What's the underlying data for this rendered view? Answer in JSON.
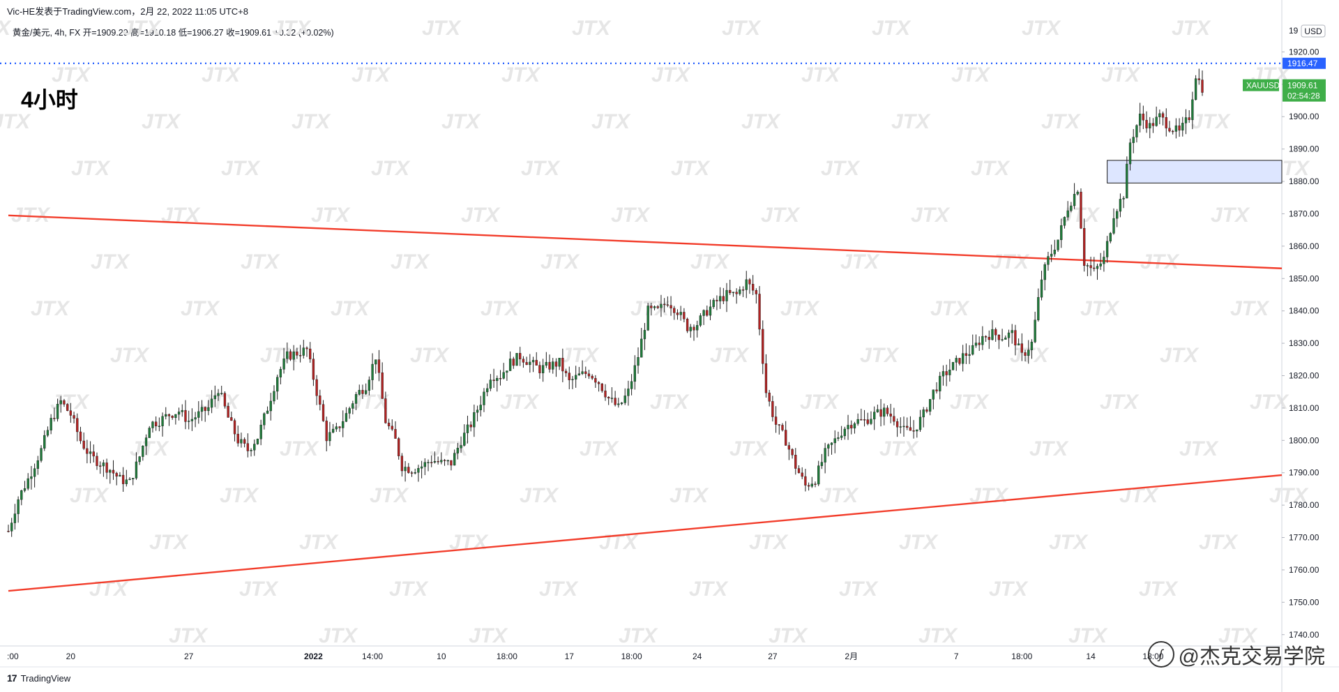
{
  "header": {
    "publisher": "Vic-HE发表于TradingView.com，2月 22, 2022 11:05 UTC+8"
  },
  "symbol_line": "黄金/美元, 4h, FX  开=1909.29  高=1910.18  低=1906.27  收=1909.61  +0.32 (+0.02%)",
  "timeframe_label": "4小时",
  "footer": {
    "brand": "TradingView",
    "brand_icon": "tv-logo-icon"
  },
  "watermark": {
    "text": "@杰克交易学院",
    "icon": "weibo-icon"
  },
  "background_watermark": "JTX",
  "colors": {
    "up": "#26a69a",
    "up_candle": "#1f7a3a",
    "down": "#b22222",
    "trendline": "#f23c2a",
    "dotted": "#2962ff",
    "price_tag": "#2962ff",
    "last_tag": "#3fae49",
    "zone_fill": "#dde6ff"
  },
  "chart_data": {
    "type": "candlestick",
    "title": "",
    "currency": "USD",
    "y_ticks": [
      1740,
      1750,
      1760,
      1770,
      1780,
      1790,
      1800,
      1810,
      1820,
      1830,
      1840,
      1850,
      1860,
      1870,
      1880,
      1890,
      1900,
      1910,
      1920
    ],
    "y_tick_labels": [
      "1740.00",
      "1750.00",
      "1760.00",
      "1770.00",
      "1780.00",
      "1790.00",
      "1800.00",
      "1810.00",
      "1820.00",
      "1830.00",
      "1840.00",
      "1850.00",
      "1860.00",
      "1870.00",
      "1880.00",
      "1890.00",
      "1900.00",
      "1910.00",
      "1920.00"
    ],
    "y_top_label": "19",
    "ylim": [
      1736.5,
      1930
    ],
    "x_ticks": [
      {
        "label": ":00",
        "bar": 0
      },
      {
        "label": "20",
        "bar": 19
      },
      {
        "label": "27",
        "bar": 55
      },
      {
        "label": "2022",
        "bar": 93,
        "bold": true
      },
      {
        "label": "14:00",
        "bar": 111
      },
      {
        "label": "10",
        "bar": 132
      },
      {
        "label": "18:00",
        "bar": 152
      },
      {
        "label": "17",
        "bar": 171
      },
      {
        "label": "18:00",
        "bar": 190
      },
      {
        "label": "24",
        "bar": 210
      },
      {
        "label": "27",
        "bar": 233
      },
      {
        "label": "2月",
        "bar": 257
      },
      {
        "label": "7",
        "bar": 289
      },
      {
        "label": "18:00",
        "bar": 309
      },
      {
        "label": "14",
        "bar": 330
      },
      {
        "label": "18:00",
        "bar": 349
      }
    ],
    "price_lines": [
      {
        "price": 1916.47,
        "label": "1916.47",
        "style": "dotted"
      }
    ],
    "last_price": {
      "symbol": "XAUUSD",
      "price": "1909.61",
      "countdown": "02:54:28",
      "value": 1909.61
    },
    "zone": {
      "top": 1886.5,
      "bottom": 1879.5,
      "bar_start": 335
    },
    "trendlines": [
      {
        "from": [
          0,
          1869.5
        ],
        "to": [
          396,
          1852.8
        ]
      },
      {
        "from": [
          0,
          1753.5
        ],
        "to": [
          396,
          1790.0
        ]
      }
    ],
    "anchors": [
      [
        0,
        1772
      ],
      [
        3,
        1782
      ],
      [
        6,
        1788
      ],
      [
        10,
        1797
      ],
      [
        13,
        1806
      ],
      [
        16,
        1812
      ],
      [
        19,
        1808
      ],
      [
        22,
        1800
      ],
      [
        25,
        1795
      ],
      [
        28,
        1793
      ],
      [
        31,
        1791
      ],
      [
        34,
        1788
      ],
      [
        37,
        1787
      ],
      [
        40,
        1795
      ],
      [
        43,
        1805
      ],
      [
        46,
        1806
      ],
      [
        49,
        1808
      ],
      [
        52,
        1809
      ],
      [
        55,
        1806
      ],
      [
        58,
        1808
      ],
      [
        61,
        1810
      ],
      [
        64,
        1816
      ],
      [
        67,
        1807
      ],
      [
        70,
        1800
      ],
      [
        73,
        1797
      ],
      [
        76,
        1801
      ],
      [
        79,
        1810
      ],
      [
        82,
        1820
      ],
      [
        85,
        1826
      ],
      [
        88,
        1827
      ],
      [
        91,
        1828
      ],
      [
        94,
        1815
      ],
      [
        97,
        1801
      ],
      [
        100,
        1803
      ],
      [
        103,
        1808
      ],
      [
        106,
        1814
      ],
      [
        109,
        1817
      ],
      [
        112,
        1826
      ],
      [
        115,
        1806
      ],
      [
        118,
        1800
      ],
      [
        120,
        1792
      ],
      [
        123,
        1791
      ],
      [
        126,
        1792
      ],
      [
        129,
        1794
      ],
      [
        132,
        1793
      ],
      [
        135,
        1793
      ],
      [
        138,
        1800
      ],
      [
        141,
        1805
      ],
      [
        144,
        1812
      ],
      [
        147,
        1820
      ],
      [
        150,
        1820
      ],
      [
        153,
        1824
      ],
      [
        156,
        1826
      ],
      [
        159,
        1824
      ],
      [
        162,
        1822
      ],
      [
        165,
        1823
      ],
      [
        168,
        1824
      ],
      [
        171,
        1818
      ],
      [
        174,
        1820
      ],
      [
        177,
        1821
      ],
      [
        180,
        1818
      ],
      [
        183,
        1813
      ],
      [
        186,
        1810
      ],
      [
        189,
        1815
      ],
      [
        192,
        1826
      ],
      [
        195,
        1840
      ],
      [
        198,
        1840
      ],
      [
        201,
        1843
      ],
      [
        204,
        1840
      ],
      [
        207,
        1835
      ],
      [
        210,
        1836
      ],
      [
        213,
        1840
      ],
      [
        216,
        1843
      ],
      [
        219,
        1845
      ],
      [
        222,
        1845
      ],
      [
        225,
        1849
      ],
      [
        228,
        1845
      ],
      [
        231,
        1815
      ],
      [
        234,
        1805
      ],
      [
        237,
        1800
      ],
      [
        240,
        1792
      ],
      [
        243,
        1786
      ],
      [
        246,
        1788
      ],
      [
        249,
        1796
      ],
      [
        252,
        1800
      ],
      [
        255,
        1804
      ],
      [
        258,
        1806
      ],
      [
        261,
        1806
      ],
      [
        264,
        1808
      ],
      [
        267,
        1809
      ],
      [
        270,
        1807
      ],
      [
        273,
        1803
      ],
      [
        276,
        1803
      ],
      [
        279,
        1808
      ],
      [
        282,
        1815
      ],
      [
        285,
        1820
      ],
      [
        288,
        1823
      ],
      [
        291,
        1826
      ],
      [
        294,
        1828
      ],
      [
        297,
        1832
      ],
      [
        300,
        1833
      ],
      [
        303,
        1832
      ],
      [
        306,
        1833
      ],
      [
        309,
        1826
      ],
      [
        312,
        1830
      ],
      [
        315,
        1850
      ],
      [
        317,
        1856
      ],
      [
        320,
        1862
      ],
      [
        323,
        1872
      ],
      [
        326,
        1878
      ],
      [
        328,
        1855
      ],
      [
        331,
        1852
      ],
      [
        334,
        1856
      ],
      [
        337,
        1870
      ],
      [
        340,
        1876
      ],
      [
        342,
        1892
      ],
      [
        345,
        1900
      ],
      [
        348,
        1897
      ],
      [
        351,
        1900
      ],
      [
        354,
        1897
      ],
      [
        357,
        1895
      ],
      [
        360,
        1900
      ],
      [
        362,
        1913
      ],
      [
        364,
        1909
      ]
    ],
    "seed": 7,
    "bar_count": 365
  }
}
